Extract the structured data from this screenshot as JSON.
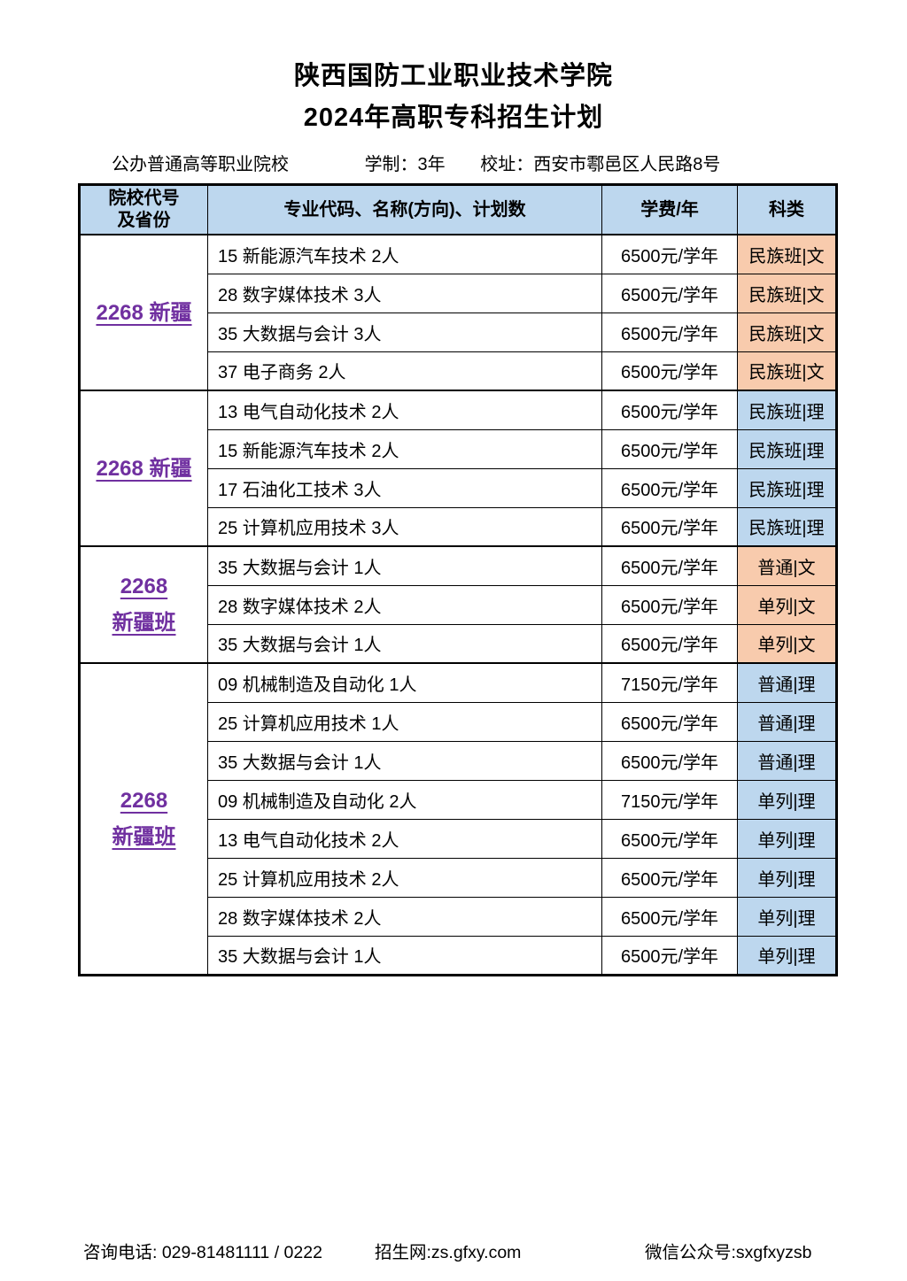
{
  "page": {
    "title": "陕西国防工业职业技术学院",
    "subtitle": "2024年高职专科招生计划"
  },
  "info": {
    "school_type": "公办普通高等职业院校",
    "duration": "学制：3年",
    "address": "校址：西安市鄠邑区人民路8号"
  },
  "table": {
    "headers": {
      "col1_line1": "院校代号",
      "col1_line2": "及省份",
      "col2": "专业代码、名称(方向)、计划数",
      "col3": "学费/年",
      "col4": "科类"
    },
    "groups": [
      {
        "label_lines": [
          "2268 新疆"
        ],
        "category_style": "peach",
        "rows": [
          {
            "program": "15 新能源汽车技术 2人",
            "fee": "6500元/学年",
            "category": "民族班|文"
          },
          {
            "program": "28 数字媒体技术 3人",
            "fee": "6500元/学年",
            "category": "民族班|文"
          },
          {
            "program": "35 大数据与会计 3人",
            "fee": "6500元/学年",
            "category": "民族班|文"
          },
          {
            "program": "37 电子商务 2人",
            "fee": "6500元/学年",
            "category": "民族班|文"
          }
        ]
      },
      {
        "label_lines": [
          "2268 新疆"
        ],
        "category_style": "blue",
        "rows": [
          {
            "program": "13 电气自动化技术 2人",
            "fee": "6500元/学年",
            "category": "民族班|理"
          },
          {
            "program": "15 新能源汽车技术 2人",
            "fee": "6500元/学年",
            "category": "民族班|理"
          },
          {
            "program": "17 石油化工技术 3人",
            "fee": "6500元/学年",
            "category": "民族班|理"
          },
          {
            "program": "25 计算机应用技术 3人",
            "fee": "6500元/学年",
            "category": "民族班|理"
          }
        ]
      },
      {
        "label_lines": [
          "2268",
          "新疆班"
        ],
        "category_style": "peach",
        "rows": [
          {
            "program": "35 大数据与会计 1人",
            "fee": "6500元/学年",
            "category": "普通|文"
          },
          {
            "program": "28 数字媒体技术 2人",
            "fee": "6500元/学年",
            "category": "单列|文"
          },
          {
            "program": "35 大数据与会计 1人",
            "fee": "6500元/学年",
            "category": "单列|文"
          }
        ]
      },
      {
        "label_lines": [
          "2268",
          "新疆班"
        ],
        "category_style": "blue",
        "rows": [
          {
            "program": "09 机械制造及自动化 1人",
            "fee": "7150元/学年",
            "category": "普通|理"
          },
          {
            "program": "25 计算机应用技术 1人",
            "fee": "6500元/学年",
            "category": "普通|理"
          },
          {
            "program": "35 大数据与会计 1人",
            "fee": "6500元/学年",
            "category": "普通|理"
          },
          {
            "program": "09 机械制造及自动化 2人",
            "fee": "7150元/学年",
            "category": "单列|理"
          },
          {
            "program": "13 电气自动化技术 2人",
            "fee": "6500元/学年",
            "category": "单列|理"
          },
          {
            "program": "25 计算机应用技术 2人",
            "fee": "6500元/学年",
            "category": "单列|理"
          },
          {
            "program": "28 数字媒体技术 2人",
            "fee": "6500元/学年",
            "category": "单列|理"
          },
          {
            "program": "35 大数据与会计 1人",
            "fee": "6500元/学年",
            "category": "单列|理"
          }
        ]
      }
    ]
  },
  "footer": {
    "phone": "咨询电话: 029-81481111 / 0222",
    "website": "招生网:zs.gfxy.com",
    "wechat": "微信公众号:sxgfxyzsb"
  },
  "colors": {
    "header_bg": "#BDD7EE",
    "category_blue": "#BDD7EE",
    "category_peach": "#F8CBAD",
    "group_label_purple": "#7030A0"
  }
}
